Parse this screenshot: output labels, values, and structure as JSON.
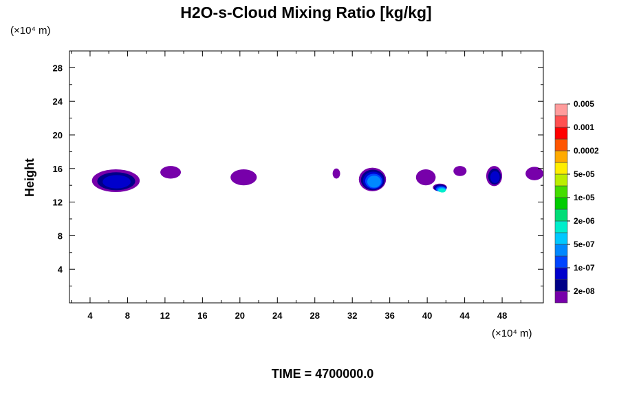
{
  "chart_data": {
    "type": "heatmap",
    "title": "H2O-s-Cloud Mixing Ratio [kg/kg]",
    "ylabel": "Height",
    "y_unit_label": "(×10⁴ m)",
    "x_unit_label": "(×10⁴ m)",
    "xlabel": "",
    "xlim": [
      1.8,
      52.4
    ],
    "ylim": [
      0,
      30
    ],
    "x_ticks": [
      4,
      8,
      12,
      16,
      20,
      24,
      28,
      32,
      36,
      40,
      44,
      48
    ],
    "y_ticks": [
      4,
      8,
      12,
      16,
      20,
      24,
      28
    ],
    "grid": false,
    "footer": "TIME = 4700000.0",
    "colorbar": {
      "colors": [
        "#7700aa",
        "#000088",
        "#0000cc",
        "#0044ff",
        "#0088ff",
        "#00c8ff",
        "#00eecc",
        "#00dd77",
        "#00cc00",
        "#44dd00",
        "#bbee00",
        "#ffee00",
        "#ffaa00",
        "#ff5500",
        "#ff0000",
        "#ff5050",
        "#ff9c9c"
      ],
      "labels": [
        "2e-08",
        "1e-07",
        "5e-07",
        "2e-06",
        "1e-05",
        "5e-05",
        "0.0002",
        "0.001",
        "0.005"
      ]
    },
    "cloud_regions": [
      {
        "x": [
          4.2,
          9.3
        ],
        "y": [
          13.2,
          15.9
        ],
        "level": 2
      },
      {
        "x": [
          11.5,
          13.7
        ],
        "y": [
          14.8,
          16.3
        ],
        "level": 0
      },
      {
        "x": [
          19.0,
          21.8
        ],
        "y": [
          14.0,
          15.9
        ],
        "level": 0
      },
      {
        "x": [
          29.9,
          30.7
        ],
        "y": [
          14.8,
          16.0
        ],
        "level": 0
      },
      {
        "x": [
          32.7,
          35.6
        ],
        "y": [
          13.3,
          16.1
        ],
        "level": 4
      },
      {
        "x": [
          38.8,
          40.9
        ],
        "y": [
          14.0,
          15.9
        ],
        "level": 0
      },
      {
        "x": [
          40.6,
          42.1
        ],
        "y": [
          13.3,
          14.2
        ],
        "level": 6
      },
      {
        "x": [
          42.8,
          44.2
        ],
        "y": [
          15.1,
          16.3
        ],
        "level": 0
      },
      {
        "x": [
          46.3,
          48.0
        ],
        "y": [
          13.9,
          16.3
        ],
        "level": 2
      },
      {
        "x": [
          50.5,
          52.4
        ],
        "y": [
          14.6,
          16.2
        ],
        "level": 0
      }
    ]
  }
}
